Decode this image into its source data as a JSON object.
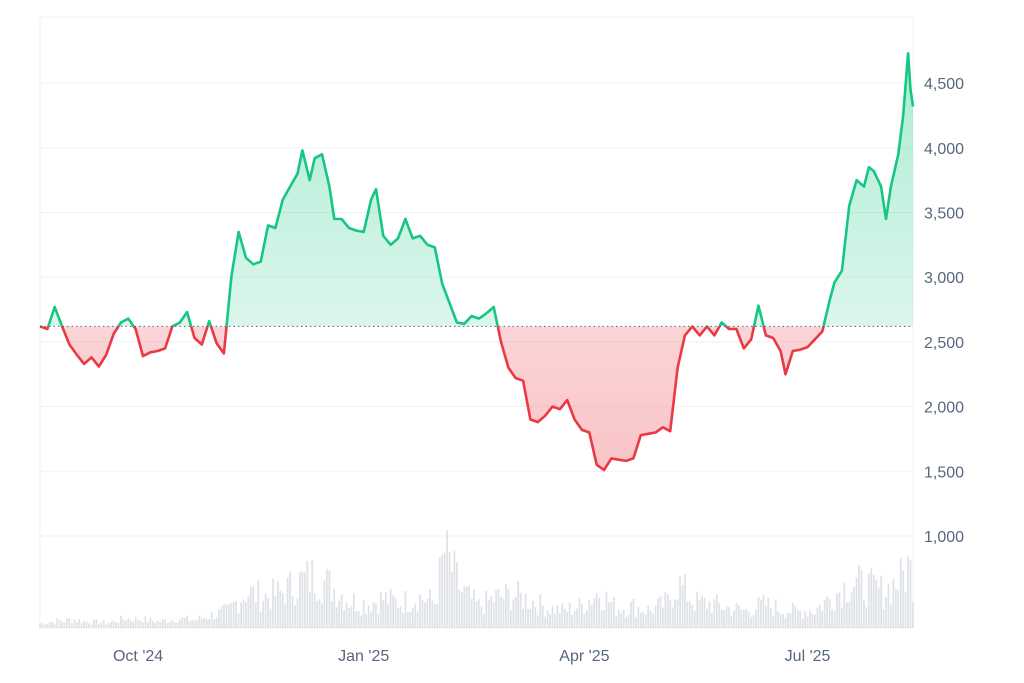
{
  "chart_data": {
    "type": "area",
    "baseline": 2620,
    "ylim": [
      1000,
      5000
    ],
    "y_ticks": [
      {
        "value": 1000,
        "label": "1,000"
      },
      {
        "value": 1500,
        "label": "1,500"
      },
      {
        "value": 2000,
        "label": "2,000"
      },
      {
        "value": 2500,
        "label": "2,500"
      },
      {
        "value": 3000,
        "label": "3,000"
      },
      {
        "value": 3500,
        "label": "3,500"
      },
      {
        "value": 4000,
        "label": "4,000"
      },
      {
        "value": 4500,
        "label": "4,500"
      }
    ],
    "x_ticks": [
      {
        "date": "2024-10-01",
        "label": "Oct '24"
      },
      {
        "date": "2025-01-01",
        "label": "Jan '25"
      },
      {
        "date": "2025-04-01",
        "label": "Apr '25"
      },
      {
        "date": "2025-07-01",
        "label": "Jul '25"
      }
    ],
    "xlim": [
      "2024-08-22",
      "2025-08-13"
    ],
    "price": [
      [
        "2024-08-22",
        2620
      ],
      [
        "2024-08-25",
        2600
      ],
      [
        "2024-08-28",
        2770
      ],
      [
        "2024-08-31",
        2620
      ],
      [
        "2024-09-03",
        2480
      ],
      [
        "2024-09-06",
        2400
      ],
      [
        "2024-09-09",
        2330
      ],
      [
        "2024-09-12",
        2380
      ],
      [
        "2024-09-15",
        2310
      ],
      [
        "2024-09-18",
        2400
      ],
      [
        "2024-09-21",
        2560
      ],
      [
        "2024-09-24",
        2650
      ],
      [
        "2024-09-27",
        2680
      ],
      [
        "2024-09-30",
        2600
      ],
      [
        "2024-10-03",
        2390
      ],
      [
        "2024-10-06",
        2420
      ],
      [
        "2024-10-09",
        2430
      ],
      [
        "2024-10-12",
        2450
      ],
      [
        "2024-10-15",
        2620
      ],
      [
        "2024-10-18",
        2650
      ],
      [
        "2024-10-21",
        2730
      ],
      [
        "2024-10-24",
        2530
      ],
      [
        "2024-10-27",
        2480
      ],
      [
        "2024-10-30",
        2660
      ],
      [
        "2024-11-02",
        2490
      ],
      [
        "2024-11-05",
        2410
      ],
      [
        "2024-11-08",
        3000
      ],
      [
        "2024-11-11",
        3350
      ],
      [
        "2024-11-14",
        3150
      ],
      [
        "2024-11-17",
        3100
      ],
      [
        "2024-11-20",
        3120
      ],
      [
        "2024-11-23",
        3400
      ],
      [
        "2024-11-26",
        3380
      ],
      [
        "2024-11-29",
        3600
      ],
      [
        "2024-12-02",
        3700
      ],
      [
        "2024-12-05",
        3800
      ],
      [
        "2024-12-07",
        3980
      ],
      [
        "2024-12-10",
        3750
      ],
      [
        "2024-12-12",
        3920
      ],
      [
        "2024-12-15",
        3950
      ],
      [
        "2024-12-18",
        3700
      ],
      [
        "2024-12-20",
        3450
      ],
      [
        "2024-12-23",
        3450
      ],
      [
        "2024-12-26",
        3380
      ],
      [
        "2024-12-29",
        3360
      ],
      [
        "2025-01-01",
        3350
      ],
      [
        "2025-01-04",
        3600
      ],
      [
        "2025-01-06",
        3680
      ],
      [
        "2025-01-09",
        3320
      ],
      [
        "2025-01-12",
        3250
      ],
      [
        "2025-01-15",
        3300
      ],
      [
        "2025-01-18",
        3450
      ],
      [
        "2025-01-21",
        3300
      ],
      [
        "2025-01-24",
        3320
      ],
      [
        "2025-01-27",
        3250
      ],
      [
        "2025-01-30",
        3230
      ],
      [
        "2025-02-02",
        2950
      ],
      [
        "2025-02-05",
        2800
      ],
      [
        "2025-02-08",
        2650
      ],
      [
        "2025-02-11",
        2640
      ],
      [
        "2025-02-14",
        2700
      ],
      [
        "2025-02-17",
        2680
      ],
      [
        "2025-02-20",
        2720
      ],
      [
        "2025-02-23",
        2770
      ],
      [
        "2025-02-26",
        2500
      ],
      [
        "2025-03-01",
        2300
      ],
      [
        "2025-03-04",
        2220
      ],
      [
        "2025-03-07",
        2200
      ],
      [
        "2025-03-10",
        1900
      ],
      [
        "2025-03-13",
        1880
      ],
      [
        "2025-03-16",
        1930
      ],
      [
        "2025-03-19",
        2000
      ],
      [
        "2025-03-22",
        1980
      ],
      [
        "2025-03-25",
        2050
      ],
      [
        "2025-03-28",
        1900
      ],
      [
        "2025-03-31",
        1820
      ],
      [
        "2025-04-03",
        1800
      ],
      [
        "2025-04-06",
        1550
      ],
      [
        "2025-04-09",
        1510
      ],
      [
        "2025-04-12",
        1600
      ],
      [
        "2025-04-15",
        1590
      ],
      [
        "2025-04-18",
        1580
      ],
      [
        "2025-04-21",
        1600
      ],
      [
        "2025-04-24",
        1780
      ],
      [
        "2025-04-27",
        1790
      ],
      [
        "2025-04-30",
        1800
      ],
      [
        "2025-05-03",
        1840
      ],
      [
        "2025-05-06",
        1810
      ],
      [
        "2025-05-09",
        2300
      ],
      [
        "2025-05-12",
        2550
      ],
      [
        "2025-05-15",
        2620
      ],
      [
        "2025-05-18",
        2550
      ],
      [
        "2025-05-21",
        2620
      ],
      [
        "2025-05-24",
        2550
      ],
      [
        "2025-05-27",
        2650
      ],
      [
        "2025-05-30",
        2600
      ],
      [
        "2025-06-02",
        2600
      ],
      [
        "2025-06-05",
        2450
      ],
      [
        "2025-06-08",
        2520
      ],
      [
        "2025-06-11",
        2780
      ],
      [
        "2025-06-14",
        2550
      ],
      [
        "2025-06-17",
        2530
      ],
      [
        "2025-06-20",
        2430
      ],
      [
        "2025-06-22",
        2250
      ],
      [
        "2025-06-25",
        2430
      ],
      [
        "2025-06-28",
        2440
      ],
      [
        "2025-07-01",
        2460
      ],
      [
        "2025-07-04",
        2520
      ],
      [
        "2025-07-07",
        2580
      ],
      [
        "2025-07-10",
        2820
      ],
      [
        "2025-07-12",
        2960
      ],
      [
        "2025-07-15",
        3050
      ],
      [
        "2025-07-18",
        3550
      ],
      [
        "2025-07-21",
        3750
      ],
      [
        "2025-07-24",
        3700
      ],
      [
        "2025-07-26",
        3850
      ],
      [
        "2025-07-28",
        3820
      ],
      [
        "2025-07-31",
        3700
      ],
      [
        "2025-08-02",
        3450
      ],
      [
        "2025-08-04",
        3700
      ],
      [
        "2025-08-07",
        3950
      ],
      [
        "2025-08-09",
        4250
      ],
      [
        "2025-08-11",
        4730
      ],
      [
        "2025-08-12",
        4450
      ],
      [
        "2025-08-13",
        4320
      ]
    ],
    "volume_range": [
      0,
      1000
    ],
    "volume": [
      [
        "2024-08-22",
        50
      ],
      [
        "2024-08-29",
        80
      ],
      [
        "2024-09-05",
        95
      ],
      [
        "2024-09-12",
        70
      ],
      [
        "2024-09-19",
        60
      ],
      [
        "2024-09-26",
        110
      ],
      [
        "2024-10-03",
        100
      ],
      [
        "2024-10-10",
        75
      ],
      [
        "2024-10-17",
        110
      ],
      [
        "2024-10-24",
        90
      ],
      [
        "2024-10-31",
        150
      ],
      [
        "2024-11-07",
        200
      ],
      [
        "2024-11-14",
        420
      ],
      [
        "2024-11-21",
        360
      ],
      [
        "2024-11-28",
        400
      ],
      [
        "2024-12-05",
        520
      ],
      [
        "2024-12-12",
        600
      ],
      [
        "2024-12-19",
        480
      ],
      [
        "2024-12-26",
        320
      ],
      [
        "2025-01-02",
        280
      ],
      [
        "2025-01-09",
        340
      ],
      [
        "2025-01-16",
        290
      ],
      [
        "2025-01-23",
        360
      ],
      [
        "2025-01-30",
        300
      ],
      [
        "2025-02-03",
        870
      ],
      [
        "2025-02-10",
        420
      ],
      [
        "2025-02-17",
        250
      ],
      [
        "2025-02-24",
        350
      ],
      [
        "2025-03-03",
        380
      ],
      [
        "2025-03-10",
        320
      ],
      [
        "2025-03-17",
        230
      ],
      [
        "2025-03-24",
        200
      ],
      [
        "2025-03-31",
        260
      ],
      [
        "2025-04-07",
        420
      ],
      [
        "2025-04-14",
        230
      ],
      [
        "2025-04-21",
        250
      ],
      [
        "2025-04-28",
        200
      ],
      [
        "2025-05-05",
        300
      ],
      [
        "2025-05-09",
        520
      ],
      [
        "2025-05-16",
        300
      ],
      [
        "2025-05-23",
        280
      ],
      [
        "2025-05-30",
        230
      ],
      [
        "2025-06-06",
        200
      ],
      [
        "2025-06-13",
        270
      ],
      [
        "2025-06-20",
        220
      ],
      [
        "2025-06-27",
        190
      ],
      [
        "2025-07-04",
        210
      ],
      [
        "2025-07-11",
        360
      ],
      [
        "2025-07-18",
        520
      ],
      [
        "2025-07-25",
        480
      ],
      [
        "2025-08-01",
        420
      ],
      [
        "2025-08-08",
        560
      ],
      [
        "2025-08-11",
        700
      ],
      [
        "2025-08-13",
        600
      ]
    ],
    "colors": {
      "up": "#16c784",
      "down": "#ea3943",
      "grid": "#eff2f5",
      "baseline": "#58667e",
      "volume": "#d9dee4",
      "label": "#58667e"
    },
    "grid": true,
    "xlabel": "",
    "ylabel": "",
    "title": ""
  }
}
